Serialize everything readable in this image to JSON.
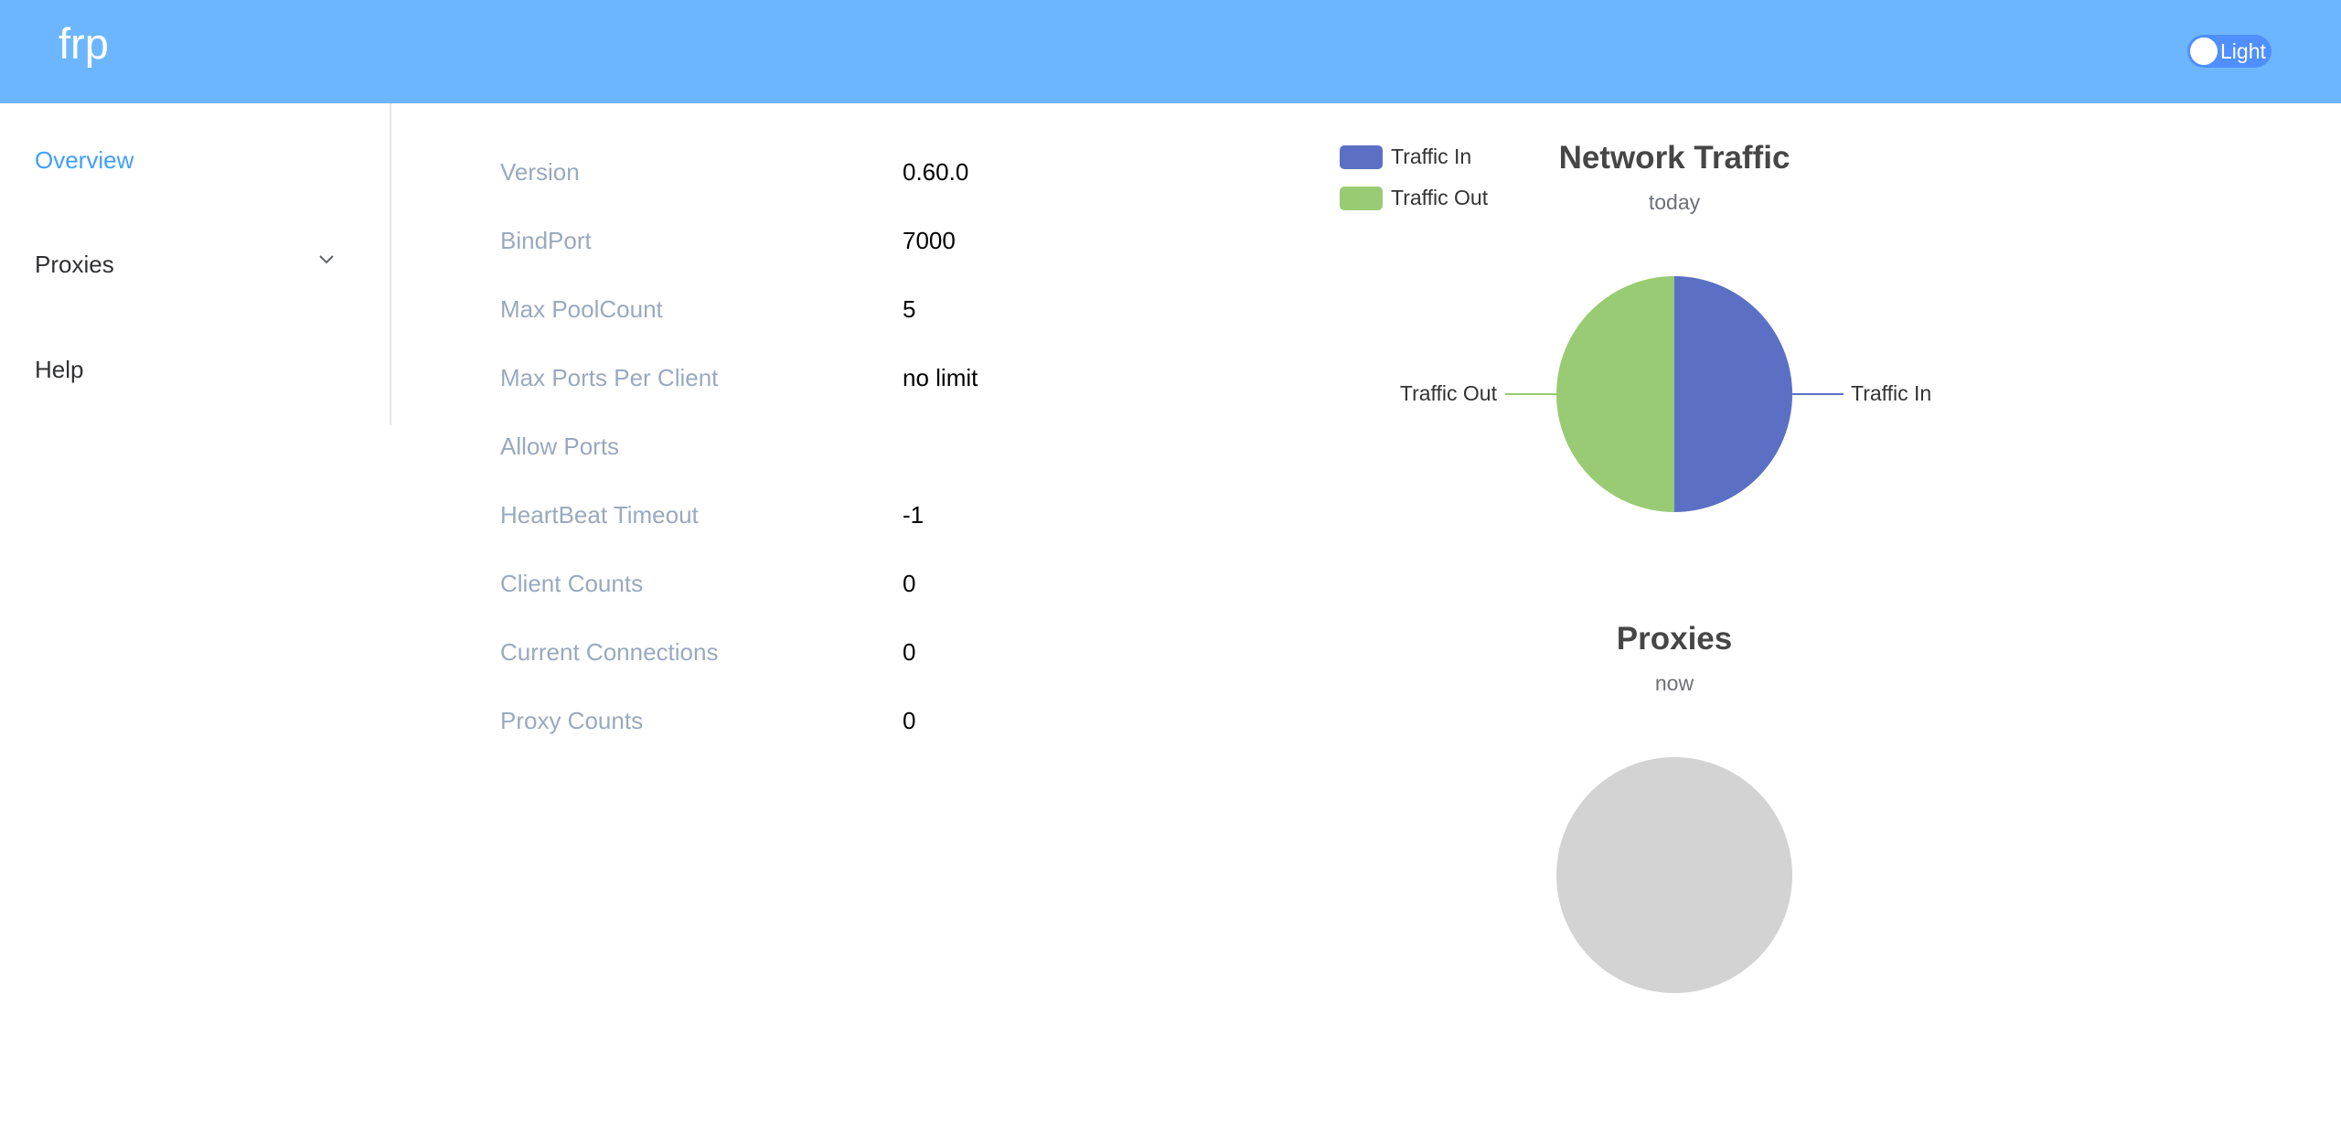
{
  "header": {
    "brand": "frp",
    "theme_toggle_label": "Light"
  },
  "sidebar": {
    "items": [
      {
        "label": "Overview",
        "active": true
      },
      {
        "label": "Proxies",
        "has_submenu": true
      },
      {
        "label": "Help"
      }
    ]
  },
  "server_info": [
    {
      "label": "Version",
      "value": "0.60.0"
    },
    {
      "label": "BindPort",
      "value": "7000"
    },
    {
      "label": "Max PoolCount",
      "value": "5"
    },
    {
      "label": "Max Ports Per Client",
      "value": "no limit"
    },
    {
      "label": "Allow Ports",
      "value": ""
    },
    {
      "label": "HeartBeat Timeout",
      "value": "-1"
    },
    {
      "label": "Client Counts",
      "value": "0"
    },
    {
      "label": "Current Connections",
      "value": "0"
    },
    {
      "label": "Proxy Counts",
      "value": "0"
    }
  ],
  "colors": {
    "header_bg": "#6cb6ff",
    "active_nav": "#409eff",
    "traffic_in": "#5b70c5",
    "traffic_out": "#98cb74",
    "empty_pie": "#d3d3d3"
  },
  "chart_data": [
    {
      "type": "pie",
      "title": "Network Traffic",
      "subtitle": "today",
      "legend": {
        "placement": "top-left"
      },
      "series": [
        {
          "name": "Traffic In",
          "value": 1
        },
        {
          "name": "Traffic Out",
          "value": 1
        }
      ]
    },
    {
      "type": "pie",
      "title": "Proxies",
      "subtitle": "now",
      "series": []
    }
  ]
}
